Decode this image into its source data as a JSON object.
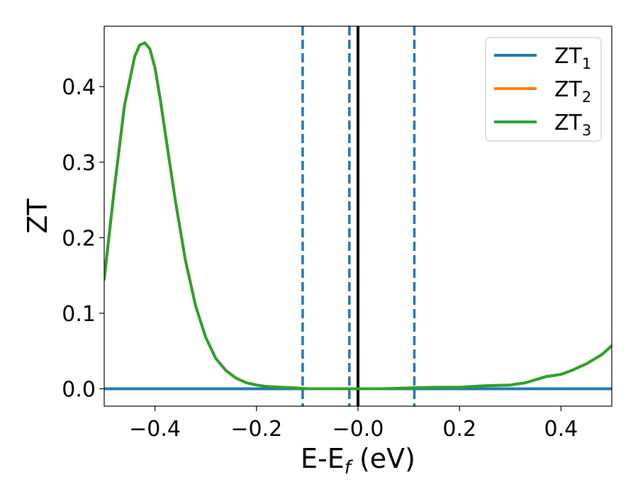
{
  "chart_data": {
    "type": "line",
    "title": "",
    "xlabel": {
      "main": "E-E",
      "sub": "f",
      "tail": " (eV)"
    },
    "ylabel": "ZT",
    "xlim": [
      -0.5,
      0.5
    ],
    "ylim": [
      -0.023,
      0.48
    ],
    "x_ticks": [
      -0.4,
      -0.2,
      0.0,
      0.2,
      0.4
    ],
    "x_tick_labels": [
      "−0.4",
      "−0.2",
      "−0.0",
      "0.2",
      "0.4"
    ],
    "y_ticks": [
      0.0,
      0.1,
      0.2,
      0.3,
      0.4
    ],
    "y_tick_labels": [
      "0.0",
      "0.1",
      "0.2",
      "0.3",
      "0.4"
    ],
    "grid": false,
    "legend_position": "top-right",
    "series": [
      {
        "name": "ZT",
        "name_sub": "1",
        "color": "#1f77b4",
        "x": [
          -0.5,
          0.5
        ],
        "y": [
          0.0,
          0.0
        ]
      },
      {
        "name": "ZT",
        "name_sub": "2",
        "color": "#ff7f0e",
        "x": [
          -0.5,
          -0.48,
          -0.46,
          -0.44,
          -0.43,
          -0.42,
          -0.41,
          -0.4,
          -0.39,
          -0.38,
          -0.36,
          -0.34,
          -0.32,
          -0.3,
          -0.28,
          -0.26,
          -0.24,
          -0.22,
          -0.2,
          -0.18,
          -0.15,
          -0.12,
          -0.1,
          -0.05,
          0.0,
          0.05,
          0.1,
          0.15,
          0.2,
          0.25,
          0.3,
          0.33,
          0.35,
          0.37,
          0.4,
          0.42,
          0.45,
          0.48,
          0.5
        ],
        "y": [
          0.145,
          0.265,
          0.375,
          0.44,
          0.455,
          0.458,
          0.45,
          0.425,
          0.385,
          0.34,
          0.25,
          0.17,
          0.11,
          0.068,
          0.04,
          0.024,
          0.014,
          0.008,
          0.005,
          0.003,
          0.002,
          0.001,
          0.0,
          0.0,
          0.0,
          0.0,
          0.001,
          0.002,
          0.002,
          0.004,
          0.005,
          0.008,
          0.012,
          0.016,
          0.019,
          0.024,
          0.033,
          0.045,
          0.057
        ]
      },
      {
        "name": "ZT",
        "name_sub": "3",
        "color": "#2ca02c",
        "x": [
          -0.5,
          -0.48,
          -0.46,
          -0.44,
          -0.43,
          -0.42,
          -0.41,
          -0.4,
          -0.39,
          -0.38,
          -0.36,
          -0.34,
          -0.32,
          -0.3,
          -0.28,
          -0.26,
          -0.24,
          -0.22,
          -0.2,
          -0.18,
          -0.15,
          -0.12,
          -0.1,
          -0.05,
          0.0,
          0.05,
          0.1,
          0.15,
          0.2,
          0.25,
          0.3,
          0.33,
          0.35,
          0.37,
          0.4,
          0.42,
          0.45,
          0.48,
          0.5
        ],
        "y": [
          0.145,
          0.265,
          0.375,
          0.44,
          0.455,
          0.458,
          0.45,
          0.425,
          0.385,
          0.34,
          0.25,
          0.17,
          0.11,
          0.068,
          0.04,
          0.024,
          0.014,
          0.008,
          0.005,
          0.003,
          0.002,
          0.001,
          0.0,
          0.0,
          0.0,
          0.0,
          0.001,
          0.002,
          0.002,
          0.004,
          0.005,
          0.008,
          0.012,
          0.016,
          0.019,
          0.024,
          0.033,
          0.045,
          0.057
        ]
      }
    ],
    "vertical_lines": [
      {
        "x": -0.109,
        "style": "dashed",
        "color": "#1f77b4"
      },
      {
        "x": -0.017,
        "style": "dashed",
        "color": "#1f77b4"
      },
      {
        "x": 0.0,
        "style": "solid",
        "color": "#000000"
      },
      {
        "x": 0.111,
        "style": "dashed",
        "color": "#1f77b4"
      }
    ]
  }
}
